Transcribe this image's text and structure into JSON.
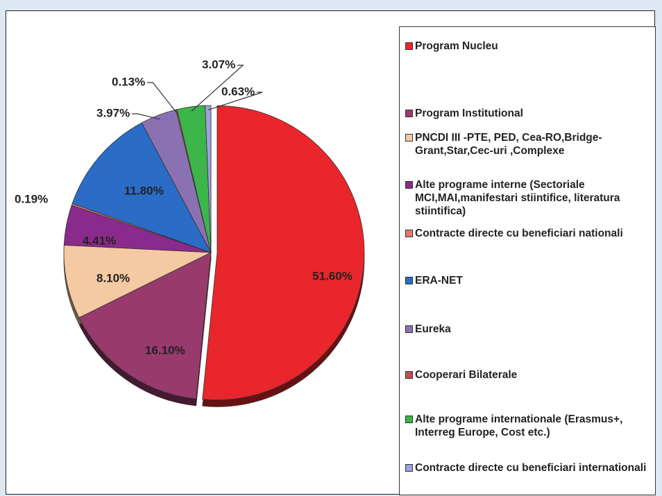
{
  "chart_data": {
    "type": "pie",
    "categories": [
      "Program Nucleu",
      "Program Institutional",
      "PNCDI III -PTE, PED, Cea-RO,Bridge-Grant,Star,Cec-uri ,Complexe",
      "Alte programe interne (Sectoriale MCI,MAI,manifestari stiintifice, literatura stiintifica)",
      "Contracte directe cu beneficiari nationali",
      "ERA-NET",
      "Eureka",
      "Cooperari Bilaterale",
      "Alte programe internationale (Erasmus+, Interreg Europe, Cost etc.)",
      "Contracte directe cu beneficiari internationali"
    ],
    "values": [
      51.6,
      16.1,
      8.1,
      4.41,
      0.19,
      11.8,
      3.97,
      0.13,
      3.07,
      0.63
    ],
    "value_labels": [
      "51.60%",
      "16.10%",
      "8.10%",
      "4.41%",
      "0.19%",
      "11.80%",
      "3.97%",
      "0.13%",
      "3.07%",
      "0.63%"
    ],
    "colors": [
      "#e8262b",
      "#983a6c",
      "#f5c9a2",
      "#8a2a8c",
      "#e8796a",
      "#2a6cc6",
      "#8a72b2",
      "#c0504d",
      "#3cb54a",
      "#9ea0e0"
    ],
    "legend": "right"
  }
}
